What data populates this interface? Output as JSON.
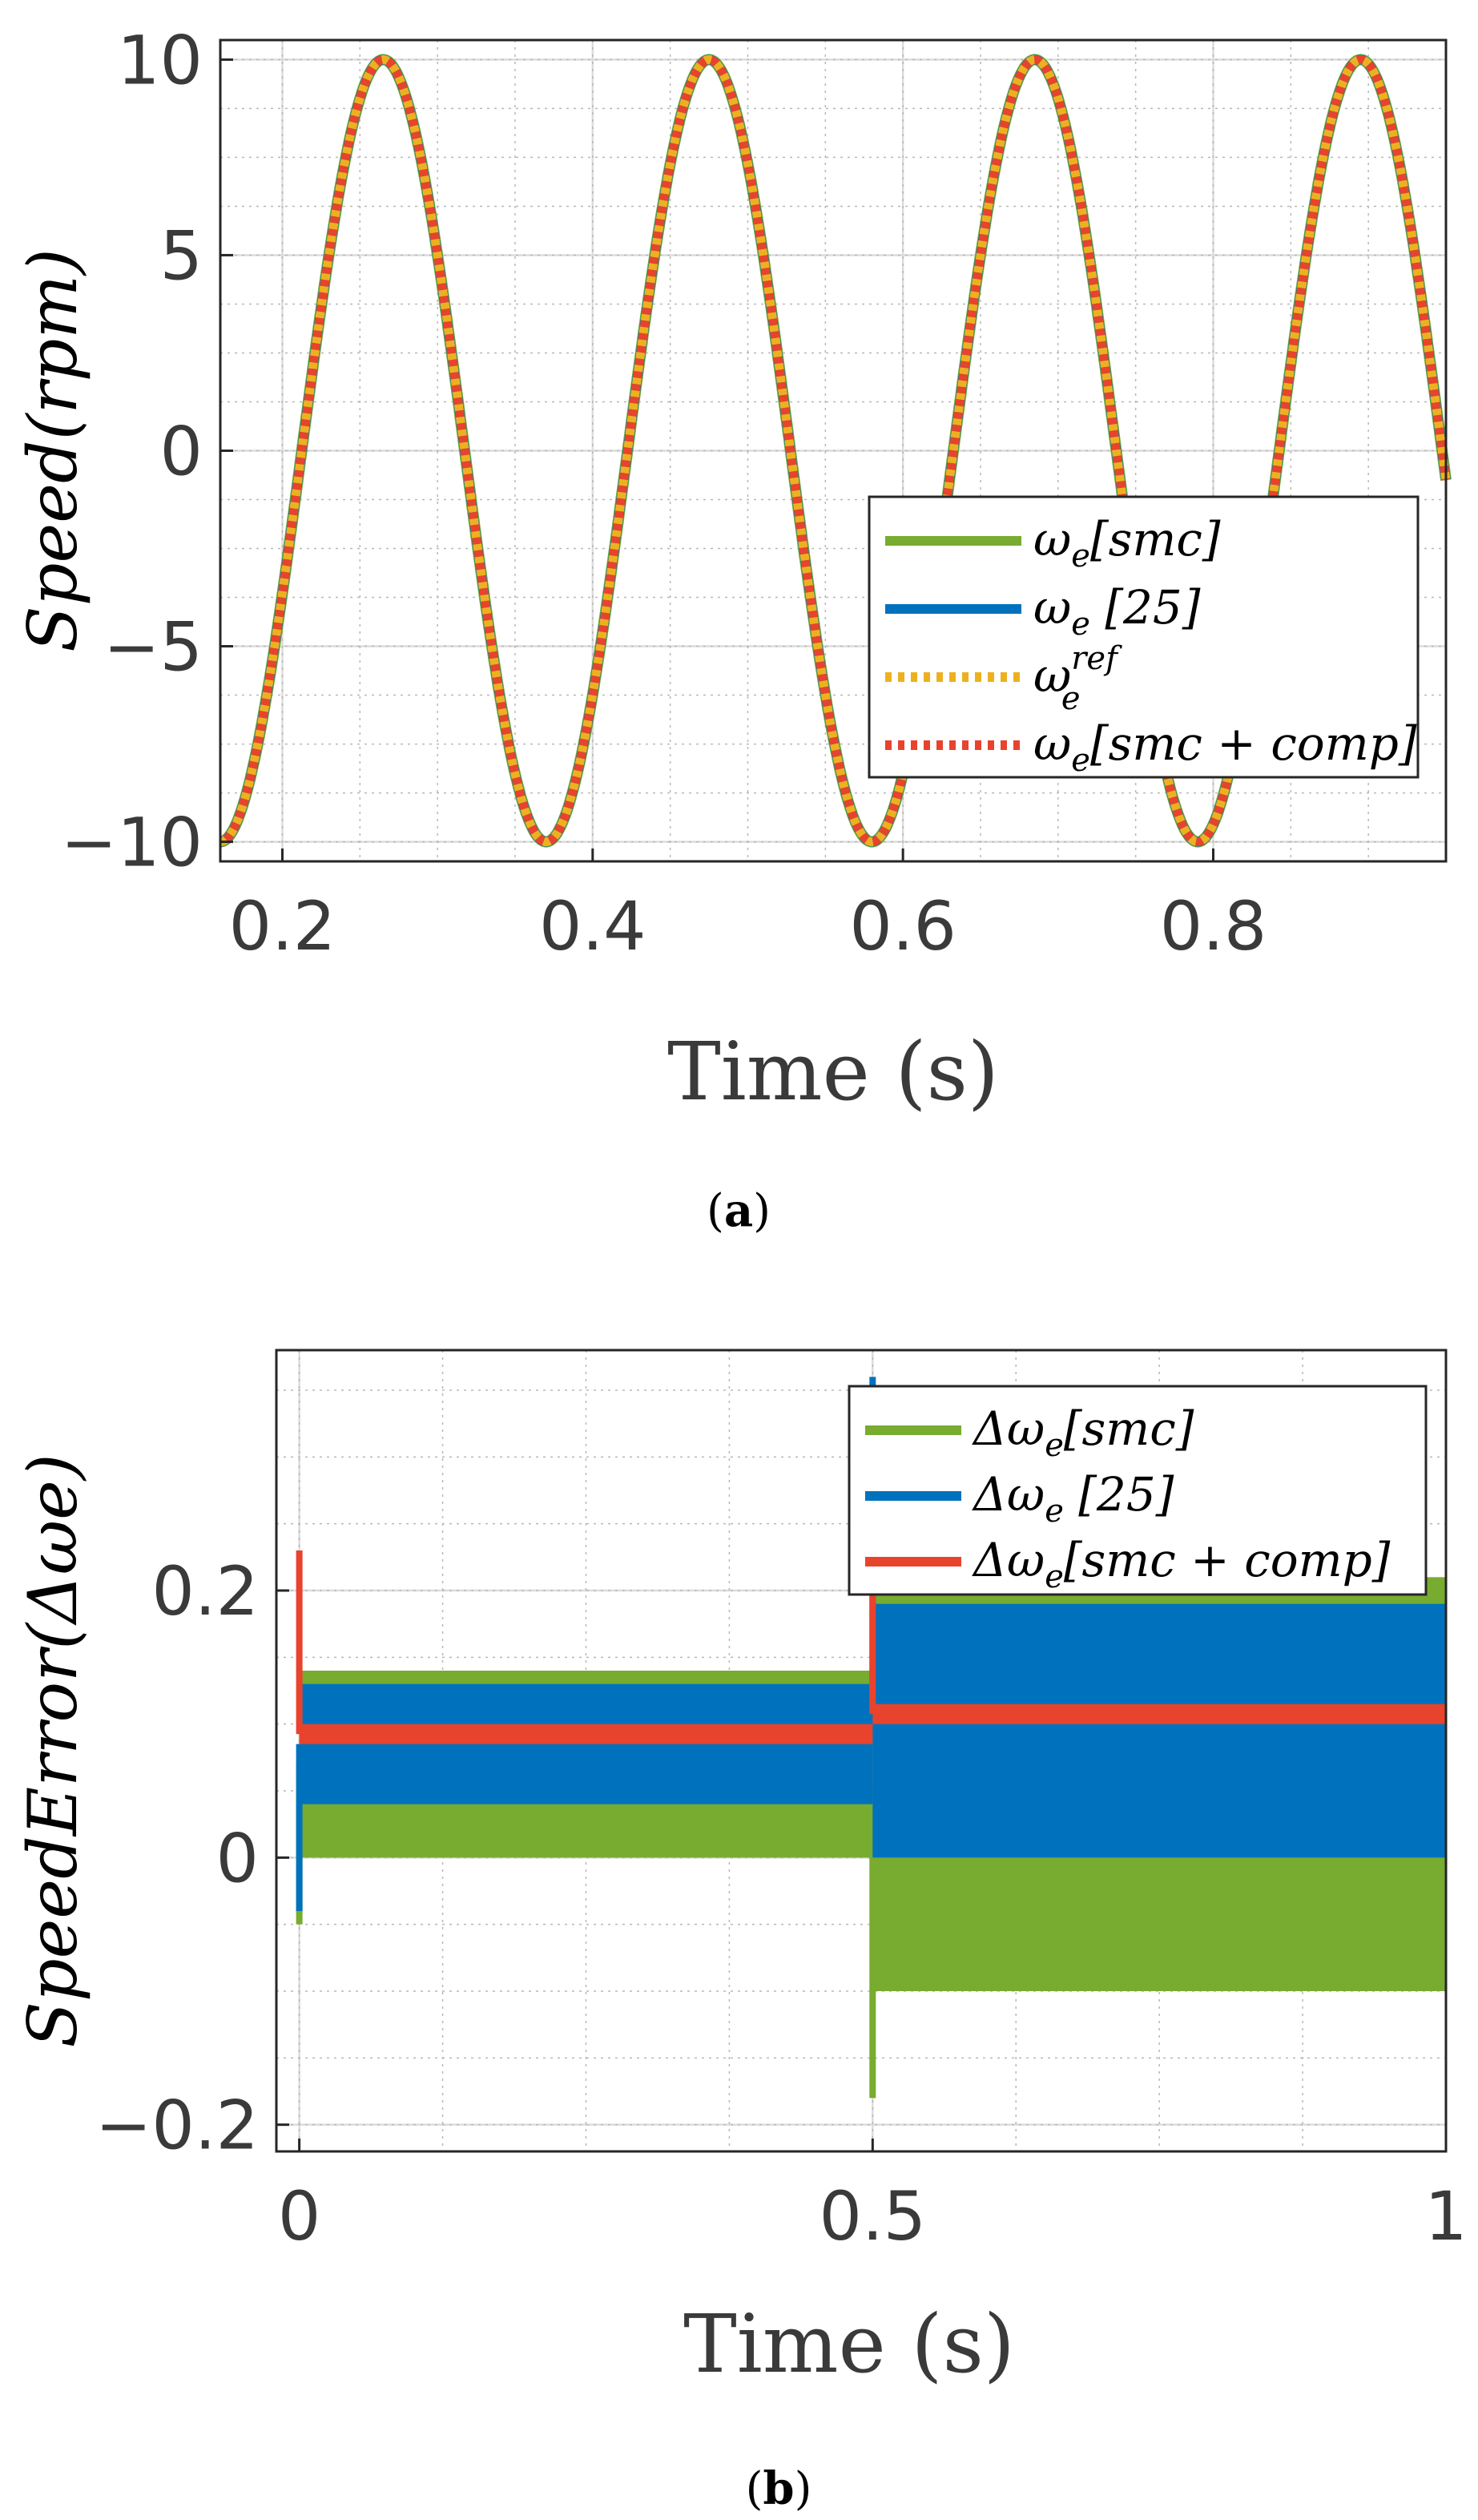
{
  "chart_data": [
    {
      "type": "line",
      "panel_label": "a",
      "xlabel": "Time (s)",
      "ylabel": "Speed(rpm)",
      "xlim": [
        0.16,
        0.95
      ],
      "ylim": [
        -10.5,
        10.5
      ],
      "xticks": [
        0.2,
        0.4,
        0.6,
        0.8
      ],
      "xtick_labels": [
        "0.2",
        "0.4",
        "0.6",
        "0.8"
      ],
      "yticks": [
        -10,
        -5,
        0,
        5,
        10
      ],
      "ytick_labels": [
        "−10",
        "−5",
        "0",
        "5",
        "10"
      ],
      "grid": true,
      "legend_position": "right",
      "signal": {
        "form": "sinusoid",
        "amplitude_rpm": 10,
        "period_s": 0.21,
        "start_time_s": 0.16,
        "start_value_rpm": -10
      },
      "series": [
        {
          "name": "ωe[smc]",
          "color": "#77ac30",
          "style": "solid"
        },
        {
          "name": "ωe [25]",
          "color": "#0072bd",
          "style": "solid"
        },
        {
          "name": "ωe ref",
          "color": "#edb120",
          "style": "dotted"
        },
        {
          "name": "ωe[smc + comp]",
          "color": "#e8432d",
          "style": "dotted"
        }
      ],
      "legend": [
        {
          "main": "ω",
          "sub": "e",
          "rest": "[smc]"
        },
        {
          "main": "ω",
          "sub": "e",
          "rest": " [25]"
        },
        {
          "main": "ω",
          "sub": "e",
          "sup": "ref",
          "rest": ""
        },
        {
          "main": "ω",
          "sub": "e",
          "rest": "[smc + comp]"
        }
      ]
    },
    {
      "type": "line",
      "panel_label": "b",
      "xlabel": "Time (s)",
      "ylabel": "SpeedError(Δωe)",
      "xlim": [
        -0.02,
        1.0
      ],
      "ylim": [
        -0.22,
        0.38
      ],
      "xticks": [
        0,
        0.5,
        1
      ],
      "xtick_labels": [
        "0",
        "0.5",
        "1"
      ],
      "yticks": [
        -0.2,
        0,
        0.2
      ],
      "ytick_labels": [
        "−0.2",
        "0",
        "0.2"
      ],
      "grid": true,
      "legend_position": "top-right",
      "series": [
        {
          "name": "Δωe[smc]",
          "color": "#77ac30",
          "bands": [
            {
              "t": [
                0,
                0.5
              ],
              "low": 0.0,
              "high": 0.14
            },
            {
              "t": [
                0.5,
                1.0
              ],
              "low": -0.1,
              "high": 0.21
            }
          ],
          "spikes": [
            {
              "t": 0.0,
              "value": -0.05
            },
            {
              "t": 0.5,
              "value": -0.18
            }
          ]
        },
        {
          "name": "Δωe [25]",
          "color": "#0072bd",
          "bands": [
            {
              "t": [
                0,
                0.5
              ],
              "low": 0.04,
              "high": 0.13
            },
            {
              "t": [
                0.5,
                1.0
              ],
              "low": 0.0,
              "high": 0.19
            }
          ],
          "spikes": [
            {
              "t": 0.0,
              "value": -0.04
            },
            {
              "t": 0.5,
              "value": 0.36
            }
          ]
        },
        {
          "name": "Δωe[smc + comp]",
          "color": "#e8432d",
          "bands": [
            {
              "t": [
                0,
                0.5
              ],
              "low": 0.085,
              "high": 0.1
            },
            {
              "t": [
                0.5,
                1.0
              ],
              "low": 0.1,
              "high": 0.115
            }
          ],
          "spikes": [
            {
              "t": 0.0,
              "value": 0.23
            },
            {
              "t": 0.5,
              "value": 0.24
            }
          ]
        }
      ],
      "legend": [
        {
          "main": "Δω",
          "sub": "e",
          "rest": "[smc]"
        },
        {
          "main": "Δω",
          "sub": "e",
          "rest": " [25]"
        },
        {
          "main": "Δω",
          "sub": "e",
          "rest": "[smc + comp]"
        }
      ]
    }
  ]
}
